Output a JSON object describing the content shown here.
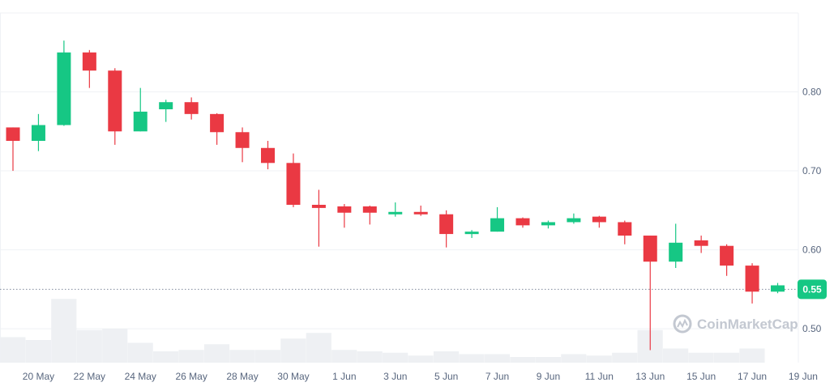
{
  "watermark": "CoinMarketCap",
  "colors": {
    "up": "#16c784",
    "down": "#ea3943",
    "volume": "#eef0f3",
    "grid": "#eff2f5",
    "axis_text": "#58667e"
  },
  "chart_data": {
    "type": "candlestick",
    "x": [
      "19 May",
      "20 May",
      "21 May",
      "22 May",
      "23 May",
      "24 May",
      "25 May",
      "26 May",
      "27 May",
      "28 May",
      "29 May",
      "30 May",
      "31 May",
      "1 Jun",
      "2 Jun",
      "3 Jun",
      "4 Jun",
      "5 Jun",
      "6 Jun",
      "7 Jun",
      "8 Jun",
      "9 Jun",
      "10 Jun",
      "11 Jun",
      "12 Jun",
      "13 Jun",
      "14 Jun",
      "15 Jun",
      "16 Jun",
      "17 Jun",
      "18 Jun"
    ],
    "x_tick_labels": [
      "20 May",
      "22 May",
      "24 May",
      "26 May",
      "28 May",
      "30 May",
      "1 Jun",
      "3 Jun",
      "5 Jun",
      "7 Jun",
      "9 Jun",
      "11 Jun",
      "13 Jun",
      "15 Jun",
      "17 Jun",
      "19 Jun"
    ],
    "y_tick_labels": [
      "0.80",
      "0.70",
      "0.60",
      "0.50"
    ],
    "y_ticks": [
      0.8,
      0.7,
      0.6,
      0.5
    ],
    "ylim": [
      0.455,
      0.9
    ],
    "current_price": 0.55,
    "current_price_label": "0.55",
    "open": [
      0.755,
      0.738,
      0.758,
      0.85,
      0.827,
      0.75,
      0.778,
      0.787,
      0.772,
      0.749,
      0.729,
      0.71,
      0.657,
      0.655,
      0.655,
      0.647,
      0.648,
      0.645,
      0.62,
      0.623,
      0.64,
      0.631,
      0.635,
      0.642,
      0.635,
      0.618,
      0.585,
      0.612,
      0.605,
      0.58,
      0.547
    ],
    "close": [
      0.738,
      0.758,
      0.85,
      0.827,
      0.75,
      0.775,
      0.787,
      0.772,
      0.749,
      0.729,
      0.71,
      0.657,
      0.653,
      0.647,
      0.647,
      0.648,
      0.645,
      0.62,
      0.623,
      0.64,
      0.631,
      0.635,
      0.64,
      0.635,
      0.618,
      0.585,
      0.609,
      0.605,
      0.58,
      0.547,
      0.555
    ],
    "high": [
      0.755,
      0.772,
      0.865,
      0.853,
      0.83,
      0.805,
      0.79,
      0.793,
      0.773,
      0.755,
      0.738,
      0.722,
      0.676,
      0.658,
      0.656,
      0.66,
      0.656,
      0.65,
      0.625,
      0.654,
      0.641,
      0.637,
      0.646,
      0.643,
      0.637,
      0.618,
      0.633,
      0.618,
      0.607,
      0.583,
      0.558
    ],
    "low": [
      0.7,
      0.725,
      0.757,
      0.805,
      0.733,
      0.75,
      0.762,
      0.765,
      0.733,
      0.711,
      0.702,
      0.654,
      0.604,
      0.628,
      0.632,
      0.642,
      0.643,
      0.603,
      0.615,
      0.623,
      0.628,
      0.627,
      0.633,
      0.628,
      0.607,
      0.473,
      0.577,
      0.596,
      0.567,
      0.532,
      0.545
    ],
    "volume": [
      18,
      16,
      45,
      23,
      24,
      14,
      8,
      9,
      13,
      9,
      9,
      17,
      21,
      9,
      8,
      7,
      5,
      8,
      6,
      6,
      4,
      4,
      6,
      5,
      7,
      23,
      10,
      7,
      7,
      10,
      0
    ]
  }
}
